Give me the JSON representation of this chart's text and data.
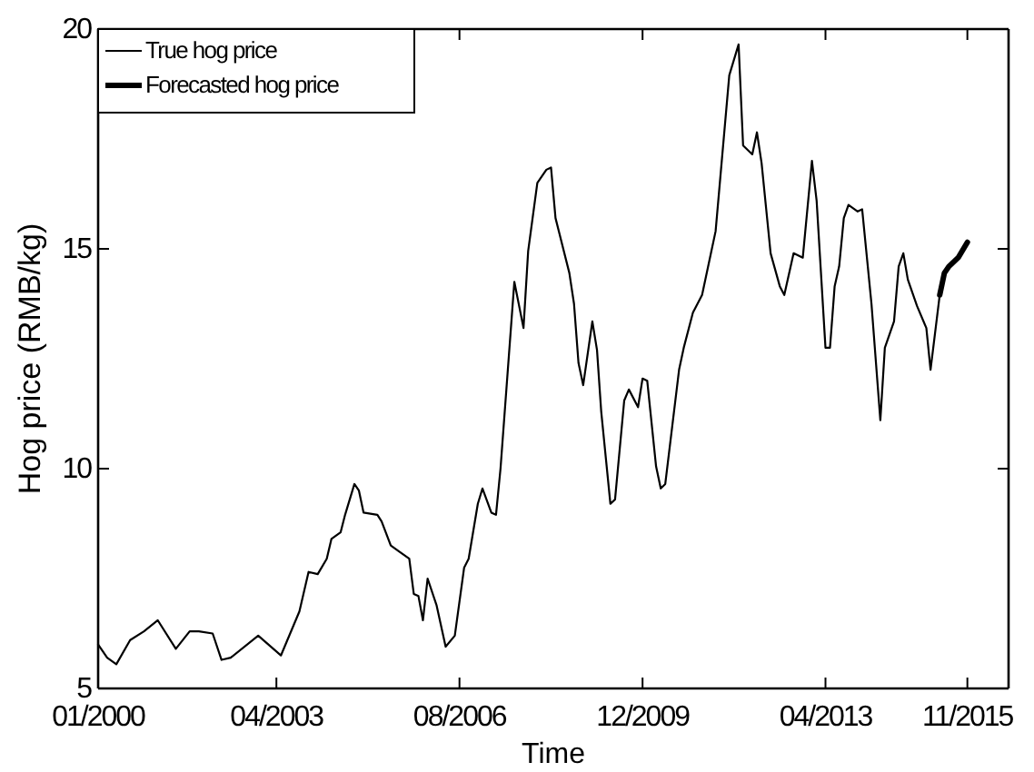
{
  "chart_data": {
    "type": "line",
    "xlabel": "Time",
    "ylabel": "Hog price (RMB/kg)",
    "legend": "top left",
    "line_style": "solid",
    "xlim": [
      "2000-01",
      "2016-08"
    ],
    "ylim": [
      5,
      20
    ],
    "yticks": [
      5,
      10,
      15,
      20
    ],
    "xticks": [
      {
        "value": "2000-01",
        "label": "01/2000"
      },
      {
        "value": "2003-04",
        "label": "04/2003"
      },
      {
        "value": "2006-08",
        "label": "08/2006"
      },
      {
        "value": "2009-12",
        "label": "12/2009"
      },
      {
        "value": "2013-04",
        "label": "04/2013"
      },
      {
        "value": "2015-11",
        "label": "11/2015"
      }
    ],
    "series": [
      {
        "name": "True hog price",
        "color": "#000000",
        "x": [
          "2000-01",
          "2000-03",
          "2000-05",
          "2000-08",
          "2000-11",
          "2001-02",
          "2001-06",
          "2001-09",
          "2001-11",
          "2002-02",
          "2002-04",
          "2002-06",
          "2002-12",
          "2003-05",
          "2003-09",
          "2003-11",
          "2004-01",
          "2004-03",
          "2004-04",
          "2004-06",
          "2004-07",
          "2004-09",
          "2004-10",
          "2004-11",
          "2005-02",
          "2005-03",
          "2005-05",
          "2005-07",
          "2005-09",
          "2005-10",
          "2005-11",
          "2005-12",
          "2006-01",
          "2006-03",
          "2006-05",
          "2006-07",
          "2006-09",
          "2006-10",
          "2006-12",
          "2007-01",
          "2007-03",
          "2007-04",
          "2007-05",
          "2007-08",
          "2007-10",
          "2007-11",
          "2008-01",
          "2008-03",
          "2008-04",
          "2008-05",
          "2008-08",
          "2008-09",
          "2008-10",
          "2008-11",
          "2009-01",
          "2009-02",
          "2009-03",
          "2009-05",
          "2009-06",
          "2009-08",
          "2009-09",
          "2009-11",
          "2009-12",
          "2010-01",
          "2010-03",
          "2010-04",
          "2010-05",
          "2010-08",
          "2010-09",
          "2010-11",
          "2011-01",
          "2011-03",
          "2011-04",
          "2011-07",
          "2011-09",
          "2011-10",
          "2011-12",
          "2012-01",
          "2012-02",
          "2012-04",
          "2012-06",
          "2012-07",
          "2012-09",
          "2012-11",
          "2013-01",
          "2013-02",
          "2013-04",
          "2013-05",
          "2013-06",
          "2013-07",
          "2013-08",
          "2013-09",
          "2013-11",
          "2013-12",
          "2014-02",
          "2014-04",
          "2014-05",
          "2014-07",
          "2014-08",
          "2014-09",
          "2014-10",
          "2014-12",
          "2015-02",
          "2015-03",
          "2015-05"
        ],
        "values": [
          6.0,
          5.7,
          5.55,
          6.1,
          6.3,
          6.55,
          5.9,
          6.3,
          6.3,
          6.25,
          5.65,
          5.7,
          6.2,
          5.75,
          6.75,
          7.65,
          7.6,
          7.95,
          8.4,
          8.55,
          8.95,
          9.65,
          9.5,
          9.0,
          8.95,
          8.8,
          8.25,
          8.1,
          7.95,
          7.15,
          7.1,
          6.55,
          7.5,
          6.9,
          5.95,
          6.2,
          7.75,
          7.95,
          9.2,
          9.55,
          9.0,
          8.95,
          10.0,
          14.25,
          13.2,
          14.95,
          16.5,
          16.8,
          16.85,
          15.7,
          14.45,
          13.75,
          12.4,
          11.9,
          13.35,
          12.7,
          11.3,
          9.2,
          9.3,
          11.55,
          11.8,
          11.4,
          12.05,
          12.0,
          10.05,
          9.55,
          9.65,
          12.25,
          12.75,
          13.55,
          13.95,
          14.9,
          15.4,
          18.95,
          19.65,
          17.35,
          17.15,
          17.65,
          16.95,
          14.9,
          14.15,
          13.95,
          14.9,
          14.8,
          17.0,
          16.1,
          12.75,
          12.75,
          14.15,
          14.6,
          15.7,
          16.0,
          15.85,
          15.9,
          13.75,
          11.1,
          12.75,
          13.35,
          14.6,
          14.9,
          14.3,
          13.7,
          13.2,
          12.25,
          13.95
        ]
      },
      {
        "name": "Forecasted hog price",
        "color": "#000000",
        "x": [
          "2015-05",
          "2015-06",
          "2015-07",
          "2015-09",
          "2015-11"
        ],
        "values": [
          13.95,
          14.45,
          14.6,
          14.8,
          15.15
        ]
      }
    ]
  }
}
